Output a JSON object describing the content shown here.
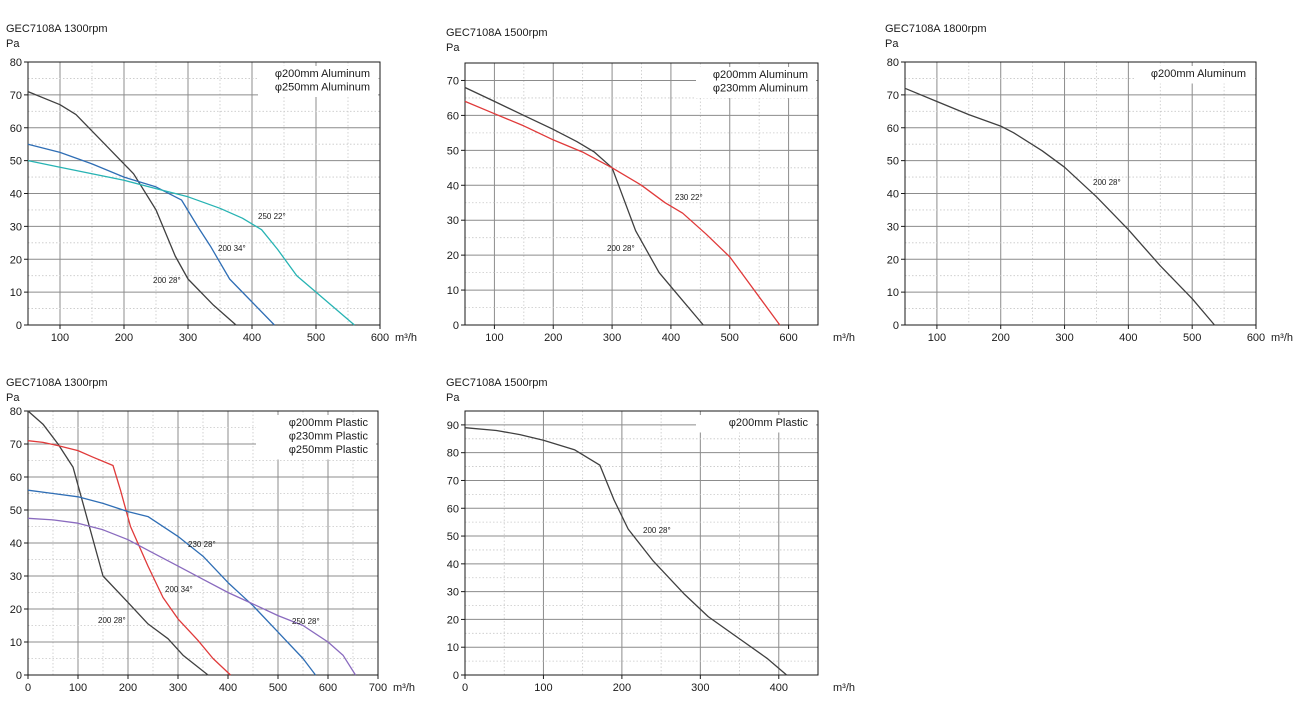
{
  "chart_data": [
    {
      "type": "line",
      "title": "GEC7108A 1300rpm",
      "ylabel": "Pa",
      "xlabel": "m³/h",
      "xlim": [
        50,
        600
      ],
      "ylim": [
        0,
        80
      ],
      "xticks": [
        100,
        200,
        300,
        400,
        500,
        600
      ],
      "yticks": [
        0,
        10,
        20,
        30,
        40,
        50,
        60,
        70,
        80
      ],
      "grid": true,
      "legend_position": "top-right",
      "legend": [
        "φ200mm Aluminum",
        "φ250mm Aluminum"
      ],
      "series": [
        {
          "name": "200 28°",
          "color": "#404040",
          "x": [
            50,
            100,
            125,
            160,
            200,
            215,
            250,
            280,
            300,
            340,
            375
          ],
          "y": [
            71,
            67,
            64,
            57,
            49,
            46,
            35,
            21,
            14,
            6,
            0
          ]
        },
        {
          "name": "200 34°",
          "color": "#2f6eb5",
          "x": [
            50,
            100,
            150,
            200,
            250,
            290,
            315,
            335,
            365,
            400,
            435
          ],
          "y": [
            55,
            52.5,
            49,
            45,
            42,
            38,
            30,
            24,
            14,
            7,
            0
          ]
        },
        {
          "name": "250 22°",
          "color": "#27b3b3",
          "x": [
            50,
            100,
            150,
            200,
            250,
            300,
            350,
            385,
            415,
            440,
            470,
            500,
            560
          ],
          "y": [
            50,
            48,
            46,
            44,
            41.5,
            39,
            35.5,
            32.5,
            29,
            23,
            15,
            10,
            0
          ]
        }
      ],
      "annotations": [
        "250 22°",
        "200 34°",
        "200 28°"
      ]
    },
    {
      "type": "line",
      "title": "GEC7108A 1500rpm",
      "ylabel": "Pa",
      "xlabel": "m³/h",
      "xlim": [
        50,
        650
      ],
      "ylim": [
        0,
        75
      ],
      "xticks": [
        100,
        200,
        300,
        400,
        500,
        600
      ],
      "yticks": [
        0,
        10,
        20,
        30,
        40,
        50,
        60,
        70
      ],
      "grid": true,
      "legend_position": "top-right",
      "legend": [
        "φ200mm Aluminum",
        "φ230mm Aluminum"
      ],
      "series": [
        {
          "name": "200 28°",
          "color": "#404040",
          "x": [
            50,
            100,
            150,
            200,
            240,
            270,
            300,
            340,
            380,
            415,
            455
          ],
          "y": [
            68,
            64,
            60,
            56,
            52.5,
            49.5,
            45,
            27,
            15,
            8,
            0
          ]
        },
        {
          "name": "230 22°",
          "color": "#e03a3a",
          "x": [
            50,
            100,
            150,
            200,
            250,
            300,
            350,
            390,
            420,
            460,
            500,
            585
          ],
          "y": [
            64,
            60.5,
            57,
            53,
            49.5,
            45,
            40,
            35,
            32,
            26,
            19.5,
            0
          ]
        }
      ],
      "annotations": [
        "230 22°",
        "200 28°"
      ]
    },
    {
      "type": "line",
      "title": "GEC7108A 1800rpm",
      "ylabel": "Pa",
      "xlabel": "m³/h",
      "xlim": [
        50,
        600
      ],
      "ylim": [
        0,
        80
      ],
      "xticks": [
        100,
        200,
        300,
        400,
        500,
        600
      ],
      "yticks": [
        0,
        10,
        20,
        30,
        40,
        50,
        60,
        70,
        80
      ],
      "grid": true,
      "legend_position": "top-right",
      "legend": [
        "φ200mm Aluminum"
      ],
      "series": [
        {
          "name": "200 28°",
          "color": "#404040",
          "x": [
            50,
            100,
            150,
            200,
            220,
            265,
            300,
            350,
            400,
            450,
            500,
            535
          ],
          "y": [
            72,
            68,
            64,
            60.5,
            58.5,
            53,
            48,
            39,
            29,
            18,
            8,
            0
          ]
        }
      ],
      "annotations": [
        "200 28°"
      ]
    },
    {
      "type": "line",
      "title": "GEC7108A 1300rpm",
      "ylabel": "Pa",
      "xlabel": "m³/h",
      "xlim": [
        0,
        700
      ],
      "ylim": [
        0,
        80
      ],
      "xticks": [
        0,
        100,
        200,
        300,
        400,
        500,
        600,
        700
      ],
      "yticks": [
        0,
        10,
        20,
        30,
        40,
        50,
        60,
        70,
        80
      ],
      "grid": true,
      "legend_position": "top-right",
      "legend": [
        "φ200mm Plastic",
        "φ230mm Plastic",
        "φ250mm Plastic"
      ],
      "series": [
        {
          "name": "200 28°",
          "color": "#404040",
          "x": [
            0,
            30,
            60,
            90,
            150,
            200,
            240,
            280,
            310,
            360
          ],
          "y": [
            80,
            76,
            70,
            63,
            30,
            22,
            15.5,
            11,
            6,
            0
          ]
        },
        {
          "name": "200 34°",
          "color": "#e03a3a",
          "x": [
            0,
            30,
            60,
            100,
            130,
            170,
            185,
            205,
            240,
            270,
            300,
            340,
            370,
            405
          ],
          "y": [
            71,
            70.5,
            69.5,
            68,
            66,
            63.5,
            56,
            45,
            33,
            23.5,
            17,
            10.5,
            5,
            0
          ]
        },
        {
          "name": "230 28°",
          "color": "#2f6eb5",
          "x": [
            0,
            50,
            100,
            150,
            200,
            240,
            300,
            350,
            400,
            450,
            500,
            550,
            575
          ],
          "y": [
            56,
            55,
            54,
            52,
            49.5,
            48,
            42,
            36,
            28,
            21,
            13,
            5,
            0
          ]
        },
        {
          "name": "250 28°",
          "color": "#8a6bbf",
          "x": [
            0,
            50,
            100,
            150,
            200,
            250,
            300,
            350,
            400,
            450,
            500,
            550,
            600,
            630,
            655
          ],
          "y": [
            47.5,
            47,
            46,
            44,
            41,
            37,
            33,
            29,
            25,
            21.5,
            18,
            15,
            10,
            6,
            0
          ]
        }
      ],
      "annotations": [
        "230 28°",
        "200 34°",
        "200 28°",
        "250 28°"
      ]
    },
    {
      "type": "line",
      "title": "GEC7108A 1500rpm",
      "ylabel": "Pa",
      "xlabel": "m³/h",
      "xlim": [
        0,
        450
      ],
      "ylim": [
        0,
        95
      ],
      "xticks": [
        0,
        100,
        200,
        300,
        400
      ],
      "yticks": [
        0,
        10,
        20,
        30,
        40,
        50,
        60,
        70,
        80,
        90
      ],
      "grid": true,
      "legend_position": "top-right",
      "legend": [
        "φ200mm Plastic"
      ],
      "series": [
        {
          "name": "200 28°",
          "color": "#404040",
          "x": [
            0,
            40,
            70,
            100,
            140,
            172,
            190,
            208,
            240,
            280,
            310,
            350,
            385,
            410
          ],
          "y": [
            89,
            88,
            86.5,
            84.5,
            81,
            75.5,
            63,
            52.5,
            41,
            29,
            21,
            13,
            6,
            0
          ]
        }
      ],
      "annotations": [
        "200 28°"
      ]
    }
  ]
}
